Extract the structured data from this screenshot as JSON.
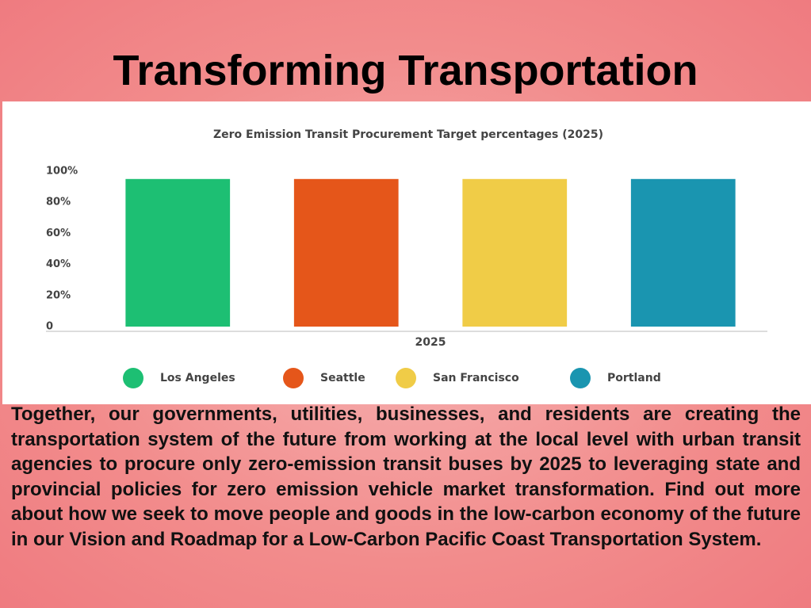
{
  "title": "Transforming Transportation",
  "chart_data": {
    "type": "bar",
    "title": "Zero Emission Transit Procurement Target percentages (2025)",
    "categories": [
      "2025"
    ],
    "series": [
      {
        "name": "Los Angeles",
        "color": "#1dbf73",
        "values": [
          95
        ]
      },
      {
        "name": "Seattle",
        "color": "#e5561a",
        "values": [
          95
        ]
      },
      {
        "name": "San Francisco",
        "color": "#f0cc47",
        "values": [
          95
        ]
      },
      {
        "name": "Portland",
        "color": "#1a95b0",
        "values": [
          95
        ]
      }
    ],
    "ylim": [
      0,
      100
    ],
    "yticks": [
      0,
      {
        "value": 20,
        "label": "20%"
      },
      {
        "value": 40,
        "label": "40%"
      },
      {
        "value": 60,
        "label": "60%"
      },
      {
        "value": 80,
        "label": "80%"
      },
      {
        "value": 100,
        "label": "100%"
      }
    ],
    "grid": false,
    "legend": "bottom"
  },
  "body": "Together, our governments, utilities, businesses, and residents are creating the transportation system of the future from working at the local level with urban transit agencies to procure only zero-emission transit buses by 2025 to leveraging state and provincial policies for zero emission vehicle market transformation. Find out more about how we seek to move people and goods in the low-carbon economy of the future in our Vision and Roadmap for a Low-Carbon Pacific Coast Transportation System."
}
